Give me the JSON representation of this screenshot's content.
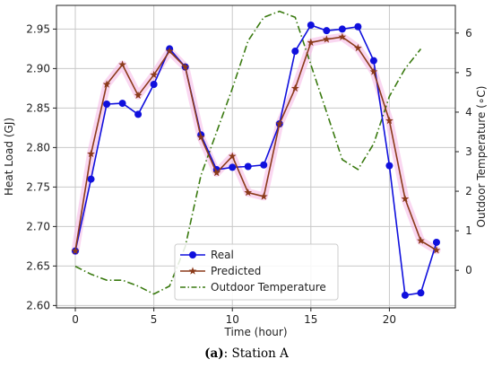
{
  "caption": {
    "prefix": "(a)",
    "text": ": Station A"
  },
  "chart_data": {
    "type": "line",
    "x": [
      0,
      1,
      2,
      3,
      4,
      5,
      6,
      7,
      8,
      9,
      10,
      11,
      12,
      13,
      14,
      15,
      16,
      17,
      18,
      19,
      20,
      21,
      22,
      23
    ],
    "xlabel": "Time (hour)",
    "ylabel_left": "Heat Load (GJ)",
    "ylabel_right": "Outdoor Temperature (∘C)",
    "xlim": [
      -1.2,
      24.2
    ],
    "ylim_left": [
      2.597,
      2.98
    ],
    "ylim_right": [
      -0.95,
      6.7
    ],
    "xticks": [
      0,
      5,
      10,
      15,
      20
    ],
    "yticks_left": [
      "2.60",
      "2.65",
      "2.70",
      "2.75",
      "2.80",
      "2.85",
      "2.90",
      "2.95"
    ],
    "yticks_right": [
      "0",
      "1",
      "2",
      "3",
      "4",
      "5",
      "6"
    ],
    "grid": true,
    "legend_position": "bottom-center",
    "series": [
      {
        "name": "Real",
        "axis": "left",
        "color": "#1010dd",
        "marker": "circle",
        "values": [
          2.669,
          2.76,
          2.855,
          2.856,
          2.842,
          2.88,
          2.925,
          2.902,
          2.816,
          2.772,
          2.775,
          2.776,
          2.778,
          2.83,
          2.922,
          2.955,
          2.948,
          2.95,
          2.953,
          2.91,
          2.777,
          2.613,
          2.616,
          2.68
        ]
      },
      {
        "name": "Predicted",
        "axis": "left",
        "color": "#8b3a1a",
        "marker": "star",
        "values": [
          2.669,
          2.792,
          2.88,
          2.905,
          2.866,
          2.892,
          2.922,
          2.902,
          2.813,
          2.768,
          2.789,
          2.743,
          2.738,
          2.83,
          2.875,
          2.933,
          2.937,
          2.94,
          2.926,
          2.896,
          2.834,
          2.735,
          2.682,
          2.67
        ]
      },
      {
        "name": "Outdoor Temperature",
        "axis": "right",
        "color": "#3a7a10",
        "dash": "dashdot",
        "values": [
          0.1,
          -0.1,
          -0.25,
          -0.25,
          -0.4,
          -0.6,
          -0.4,
          0.6,
          2.4,
          3.5,
          4.6,
          5.8,
          6.4,
          6.55,
          6.4,
          5.2,
          4.0,
          2.8,
          2.55,
          3.2,
          4.4,
          5.1,
          5.6,
          null
        ],
        "x_override": [
          0,
          1,
          2,
          3,
          4,
          5,
          6,
          7,
          8,
          9,
          10,
          11,
          12,
          13,
          14,
          15,
          16,
          17,
          18,
          19,
          20,
          21,
          22,
          23
        ]
      }
    ]
  }
}
